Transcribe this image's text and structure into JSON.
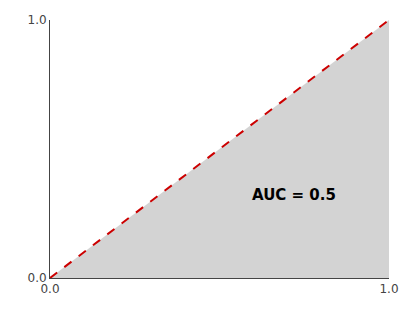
{
  "chart_data": {
    "type": "line",
    "x": [
      0.0,
      1.0
    ],
    "series": [
      {
        "type": "area",
        "color": "#d3d3d3",
        "values": [
          0.0,
          1.0
        ]
      },
      {
        "type": "line",
        "color": "#cc0000",
        "line_style": "dashed",
        "values": [
          0.0,
          1.0
        ]
      }
    ],
    "xlim": [
      0.0,
      1.0
    ],
    "ylim": [
      0.0,
      1.0
    ],
    "xticks": [
      {
        "value": 0.0,
        "label": "0.0"
      },
      {
        "value": 1.0,
        "label": "1.0"
      }
    ],
    "yticks": [
      {
        "value": 0.0,
        "label": "0.0"
      },
      {
        "value": 1.0,
        "label": "1.0"
      }
    ],
    "grid": false,
    "annotations": [
      {
        "text": "AUC = 0.5",
        "x": 0.72,
        "y": 0.32,
        "color": "#000000"
      }
    ]
  }
}
